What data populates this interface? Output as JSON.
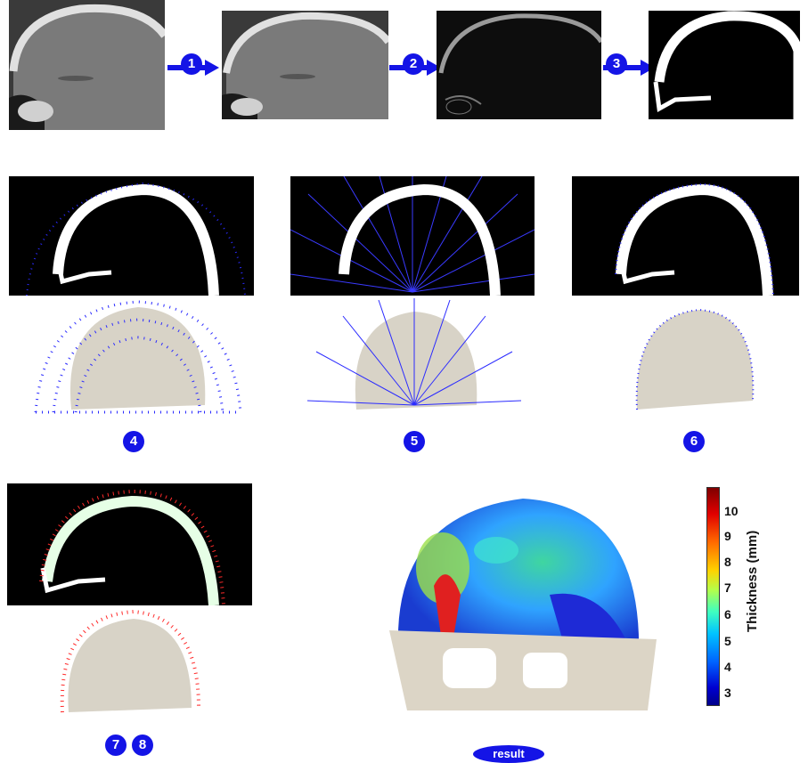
{
  "steps": {
    "s1": "1",
    "s2": "2",
    "s3": "3",
    "s4": "4",
    "s5": "5",
    "s6": "6",
    "s7": "7",
    "s8": "8"
  },
  "result_label": "result",
  "colorbar": {
    "title": "Thickness (mm)",
    "ticks": [
      "10",
      "9",
      "8",
      "7",
      "6",
      "5",
      "4",
      "3"
    ]
  }
}
